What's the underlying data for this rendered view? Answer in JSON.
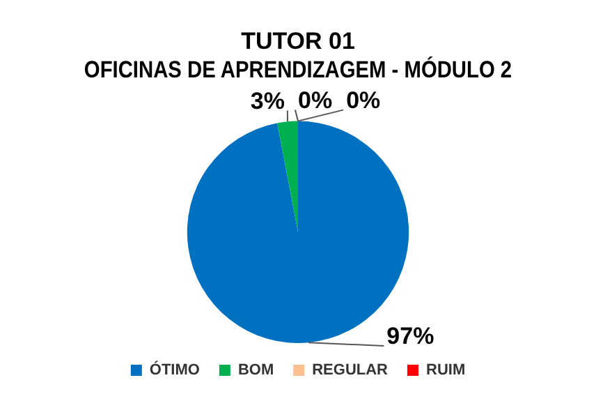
{
  "chart_data": {
    "type": "pie",
    "title": [
      "TUTOR 01",
      "OFICINAS DE APRENDIZAGEM - MÓDULO 2"
    ],
    "categories": [
      "ÓTIMO",
      "BOM",
      "REGULAR",
      "RUIM"
    ],
    "values": [
      97,
      3,
      0,
      0
    ],
    "colors": [
      "#0070c0",
      "#00b050",
      "#fac090",
      "#ff0000"
    ],
    "value_labels": [
      "97%",
      "3%",
      "0%",
      "0%"
    ],
    "legend": "bottom"
  }
}
